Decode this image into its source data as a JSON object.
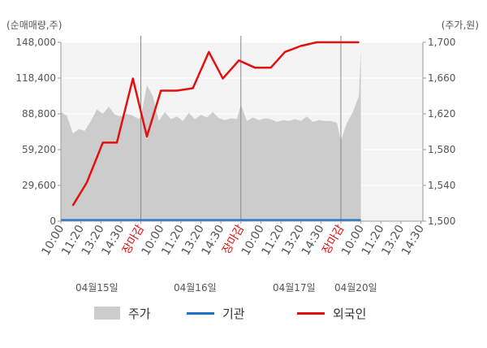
{
  "chart_data": {
    "type": "area",
    "ylabel_left": "(순매매량,주)",
    "ylabel_right": "(주가,원)",
    "left_axis": {
      "ticks": [
        0,
        29600,
        59200,
        88800,
        118400,
        148000
      ],
      "tick_labels": [
        "0",
        "29,600",
        "59,200",
        "88,800",
        "118,400",
        "148,000"
      ],
      "range": [
        0,
        148000
      ]
    },
    "right_axis": {
      "ticks": [
        1500,
        1540,
        1580,
        1620,
        1660,
        1700
      ],
      "tick_labels": [
        "1,500",
        "1,540",
        "1,580",
        "1,620",
        "1,660",
        "1,700"
      ],
      "range": [
        1500,
        1700
      ]
    },
    "x_ticks": [
      {
        "label": "10:00",
        "marker": false
      },
      {
        "label": "11:20",
        "marker": false
      },
      {
        "label": "13:20",
        "marker": false
      },
      {
        "label": "14:30",
        "marker": false
      },
      {
        "label": "장마감",
        "marker": true
      },
      {
        "label": "10:00",
        "marker": false
      },
      {
        "label": "11:20",
        "marker": false
      },
      {
        "label": "13:20",
        "marker": false
      },
      {
        "label": "14:30",
        "marker": false
      },
      {
        "label": "장마감",
        "marker": true
      },
      {
        "label": "10:00",
        "marker": false
      },
      {
        "label": "11:20",
        "marker": false
      },
      {
        "label": "13:20",
        "marker": false
      },
      {
        "label": "14:30",
        "marker": false
      },
      {
        "label": "장마감",
        "marker": true
      },
      {
        "label": "10:00",
        "marker": false
      },
      {
        "label": "11:20",
        "marker": false
      },
      {
        "label": "13:20",
        "marker": false
      },
      {
        "label": "14:30",
        "marker": false
      }
    ],
    "dates": [
      "04월15일",
      "04월16일",
      "04월17일",
      "04월20일"
    ],
    "day_separators_after_tick": [
      4,
      9,
      14
    ],
    "series": [
      {
        "name": "주가",
        "axis": "right",
        "kind": "area",
        "color": "#cccccc",
        "x": [
          0,
          0.3,
          0.6,
          0.9,
          1.2,
          1.5,
          1.8,
          2.1,
          2.4,
          2.7,
          3.0,
          3.3,
          3.6,
          3.9,
          4.0,
          4.3,
          4.6,
          4.9,
          5.2,
          5.5,
          5.8,
          6.1,
          6.4,
          6.7,
          7.0,
          7.3,
          7.6,
          7.9,
          8.2,
          8.5,
          8.8,
          9.0,
          9.3,
          9.6,
          9.9,
          10.2,
          10.5,
          10.8,
          11.1,
          11.4,
          11.7,
          12.0,
          12.3,
          12.6,
          12.9,
          13.2,
          13.5,
          13.8,
          14.0,
          14.3,
          14.6,
          14.9,
          15.0
        ],
        "values": [
          1622,
          1618,
          1598,
          1603,
          1601,
          1612,
          1625,
          1620,
          1628,
          1619,
          1617,
          1620,
          1618,
          1614,
          1617,
          1652,
          1640,
          1612,
          1622,
          1614,
          1617,
          1612,
          1621,
          1614,
          1619,
          1616,
          1622,
          1615,
          1613,
          1615,
          1614,
          1630,
          1612,
          1616,
          1613,
          1615,
          1614,
          1611,
          1613,
          1612,
          1614,
          1612,
          1617,
          1611,
          1613,
          1612,
          1612,
          1610,
          1590,
          1610,
          1622,
          1640,
          1692
        ]
      },
      {
        "name": "기관",
        "axis": "left",
        "kind": "line",
        "color": "#1a73c8",
        "x": [
          0,
          15.0
        ],
        "values": [
          0,
          0
        ]
      },
      {
        "name": "외국인",
        "axis": "left",
        "kind": "line",
        "color": "#e3100f",
        "x": [
          0.6,
          1.3,
          2.1,
          2.8,
          3.6,
          4.3,
          5.0,
          5.8,
          6.6,
          7.4,
          8.1,
          8.9,
          9.7,
          10.5,
          11.2,
          12.0,
          12.8,
          13.5,
          14.3,
          14.9
        ],
        "values": [
          13000,
          32000,
          65000,
          65000,
          118000,
          70000,
          108000,
          108000,
          110000,
          140000,
          118000,
          133000,
          127000,
          127000,
          140000,
          145000,
          148000,
          148000,
          148000,
          148000
        ]
      }
    ]
  },
  "legend": [
    {
      "label": "주가",
      "color": "#cccccc",
      "shape": "box"
    },
    {
      "label": "기관",
      "color": "#1a73c8",
      "shape": "line"
    },
    {
      "label": "외국인",
      "color": "#e3100f",
      "shape": "line"
    }
  ],
  "colors": {
    "marker_label": "#e3100f",
    "axis_text": "#555555",
    "separator": "#888888"
  }
}
